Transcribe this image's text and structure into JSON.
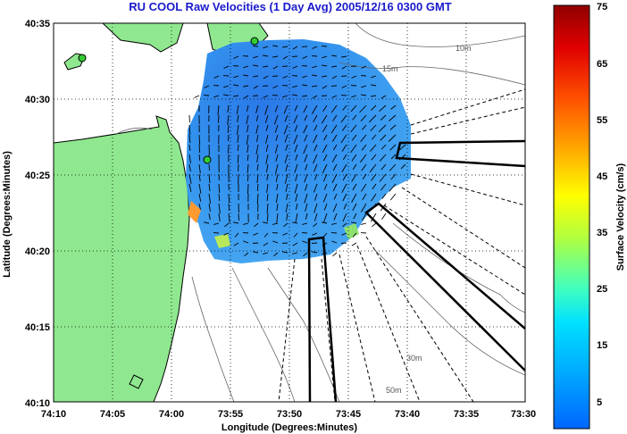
{
  "title": "RU COOL Raw Velocities (1 Day Avg) 2005/12/16 0300 GMT",
  "axes": {
    "xlabel": "Longitude (Degrees:Minutes)",
    "ylabel": "Latitude (Degrees:Minutes)",
    "x_ticks": [
      "74:10",
      "74:05",
      "74:00",
      "73:55",
      "73:50",
      "73:45",
      "73:40",
      "73:35",
      "73:30"
    ],
    "y_ticks": [
      "40:35",
      "40:30",
      "40:25",
      "40:20",
      "40:15",
      "40:10"
    ]
  },
  "colorbar": {
    "label": "Surface Velocity (cm/s)",
    "ticks": [
      "75",
      "65",
      "55",
      "45",
      "35",
      "25",
      "15",
      "5"
    ],
    "range": [
      0,
      75
    ]
  },
  "contour_labels": [
    "10m",
    "15m",
    "30m",
    "50m"
  ],
  "colors": {
    "land": "#8fe88f",
    "water": "#ffffff",
    "title": "#1a1acc",
    "velocity_field": "#2e8ff0"
  }
}
